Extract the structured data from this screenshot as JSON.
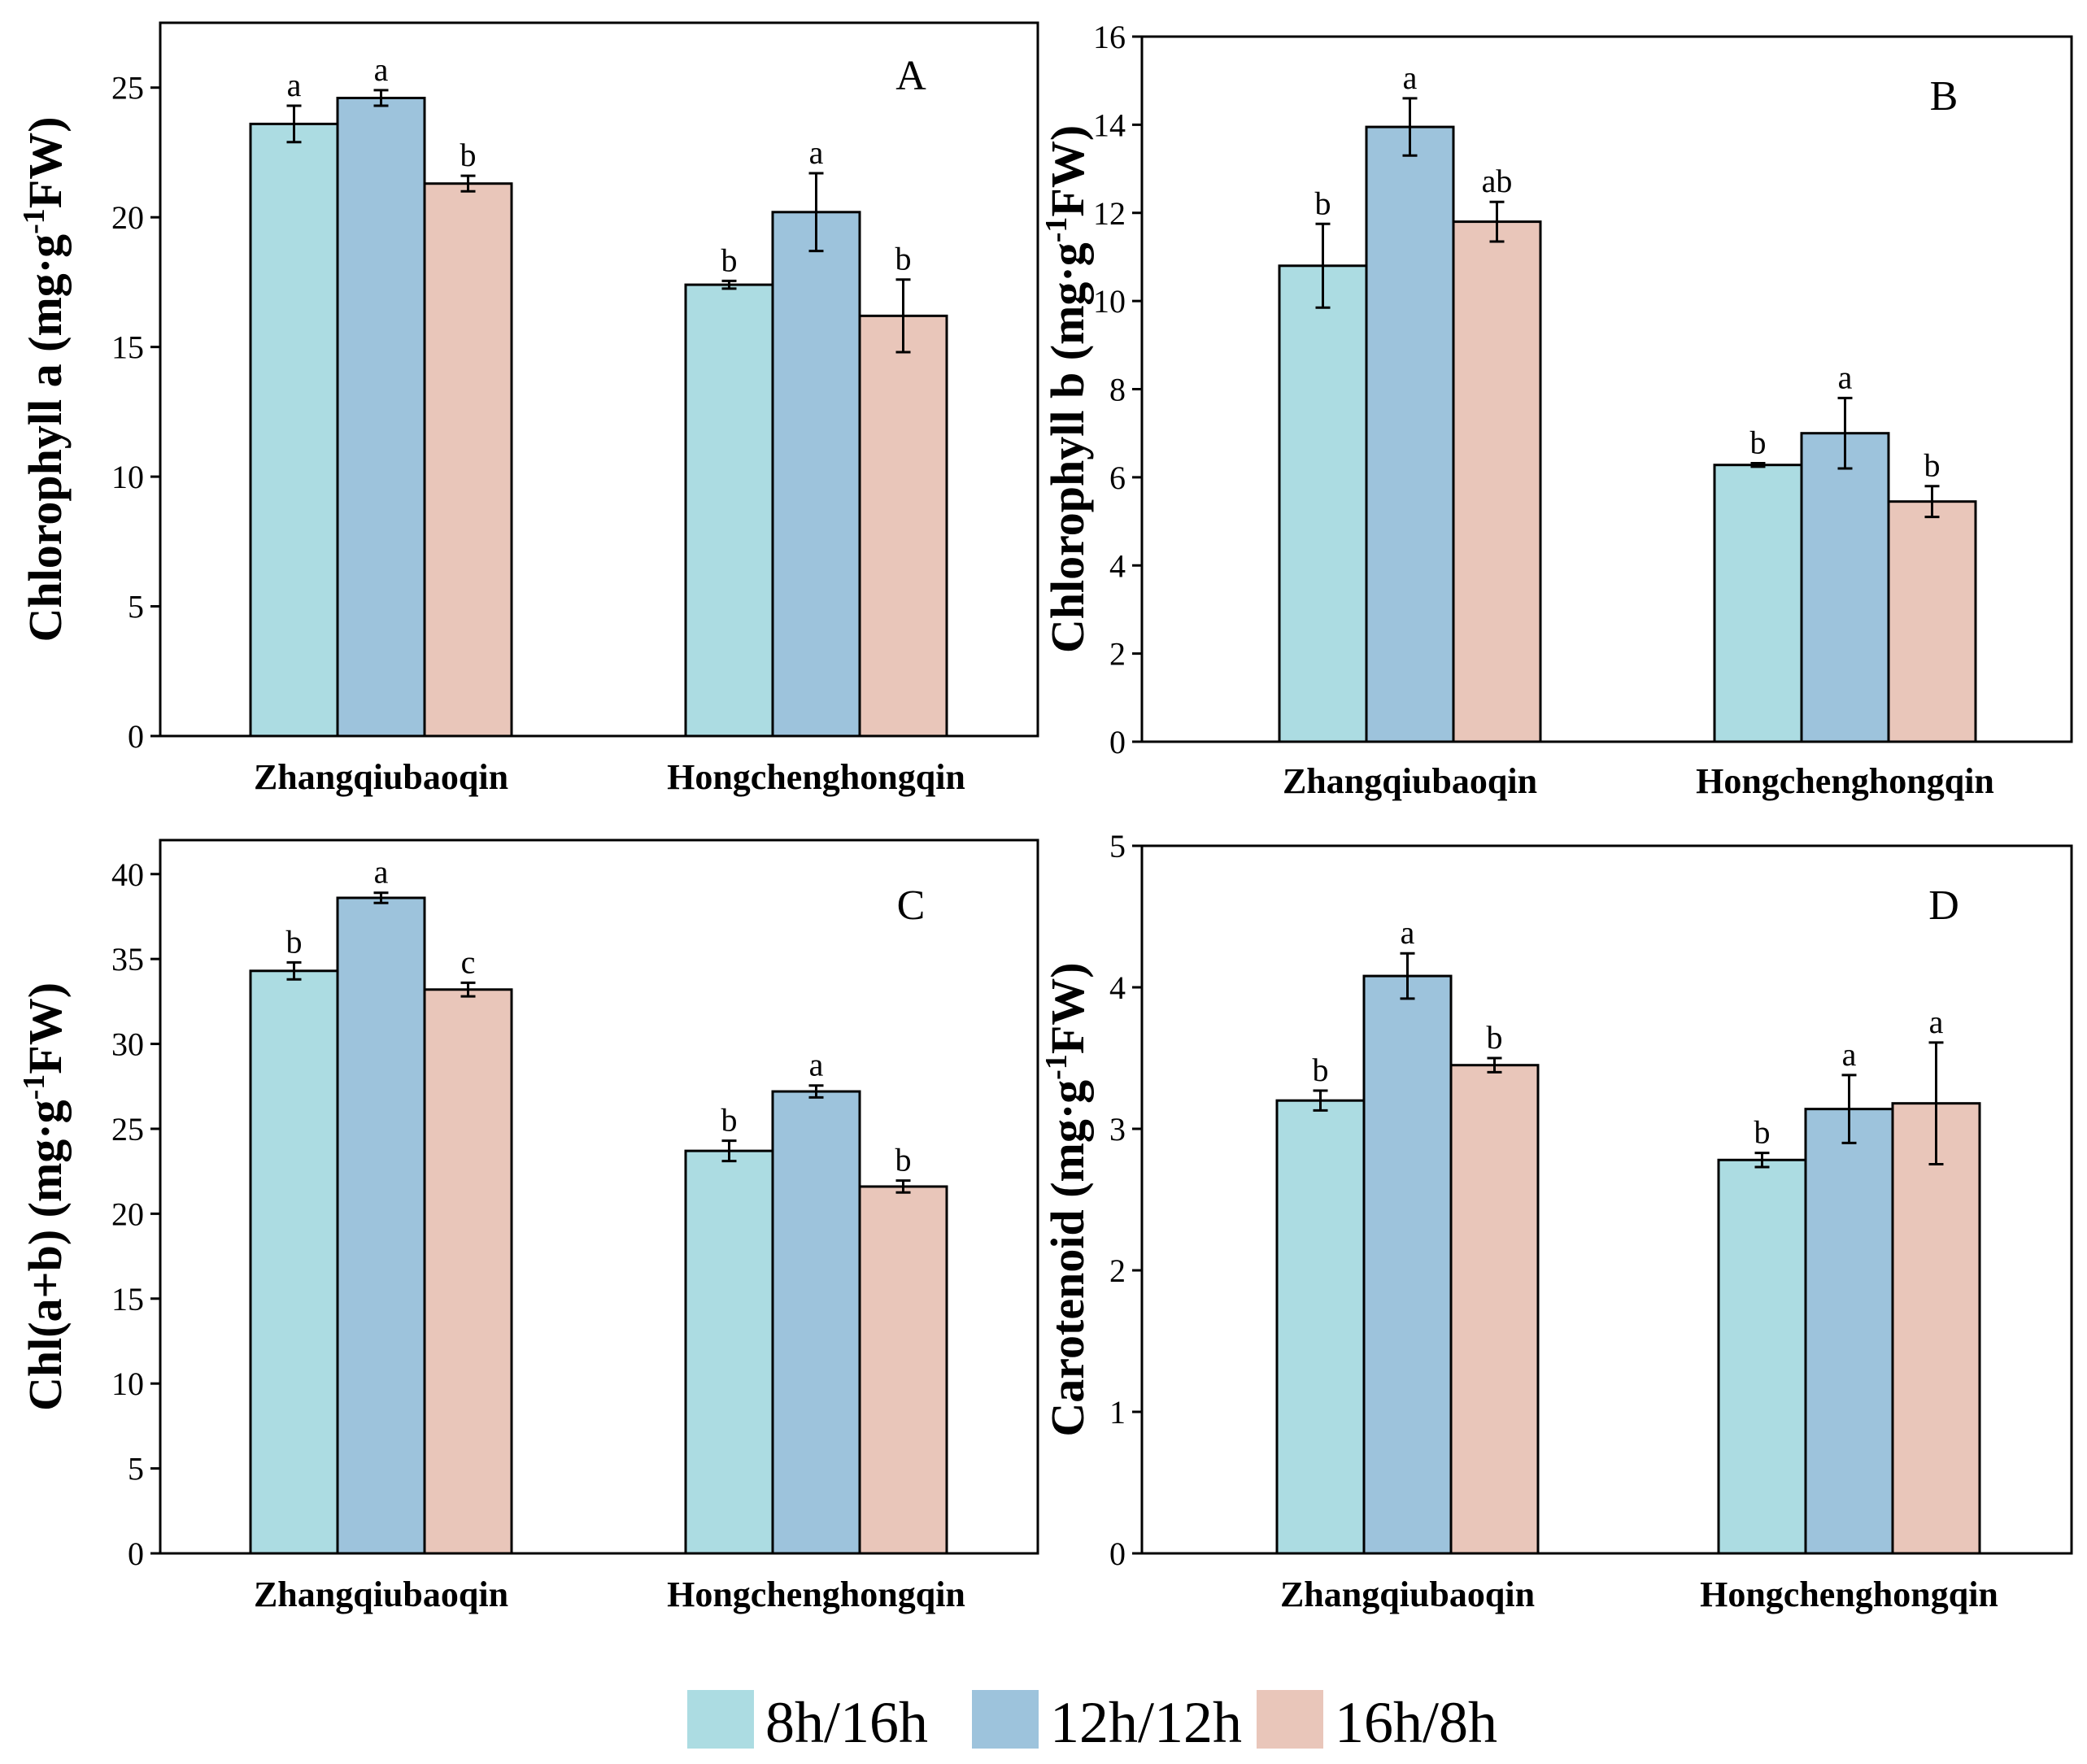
{
  "colors": {
    "s8h": "#acdce2",
    "s12h": "#9dc3dc",
    "s16h": "#e9c6ba"
  },
  "legend": [
    {
      "key": "s8h",
      "label": "8h/16h"
    },
    {
      "key": "s12h",
      "label": "12h/12h"
    },
    {
      "key": "s16h",
      "label": "16h/8h"
    }
  ],
  "chart_data": [
    {
      "type": "bar",
      "panel": "A",
      "ylabel": "Chlorophyll a (mg·g⁻¹FW)",
      "ylabel_parts": {
        "pre": "Chlorophyll a (mg·g",
        "sup": "-1",
        "post": "FW)"
      },
      "ylim": [
        0,
        27.5
      ],
      "yticks": [
        0,
        5,
        10,
        15,
        20,
        25
      ],
      "categories": [
        "Zhangqiubaoqin",
        "Hongchenghongqin"
      ],
      "series": [
        {
          "name": "8h/16h",
          "values": [
            23.6,
            17.4
          ],
          "errors": [
            0.7,
            0.15
          ],
          "labels": [
            "a",
            "b"
          ]
        },
        {
          "name": "12h/12h",
          "values": [
            24.6,
            20.2
          ],
          "errors": [
            0.3,
            1.5
          ],
          "labels": [
            "a",
            "a"
          ]
        },
        {
          "name": "16h/8h",
          "values": [
            21.3,
            16.2
          ],
          "errors": [
            0.3,
            1.4
          ],
          "labels": [
            "b",
            "b"
          ]
        }
      ]
    },
    {
      "type": "bar",
      "panel": "B",
      "ylabel": "Chlorophyll b (mg·g⁻¹FW)",
      "ylabel_parts": {
        "pre": "Chlorophyll b (mg·g",
        "sup": "-1",
        "post": "FW)"
      },
      "ylim": [
        0,
        16
      ],
      "yticks": [
        0,
        2,
        4,
        6,
        8,
        10,
        12,
        14,
        16
      ],
      "categories": [
        "Zhangqiubaoqin",
        "Hongchenghongqin"
      ],
      "series": [
        {
          "name": "8h/16h",
          "values": [
            10.8,
            6.28
          ],
          "errors": [
            0.95,
            0.04
          ],
          "labels": [
            "b",
            "b"
          ]
        },
        {
          "name": "12h/12h",
          "values": [
            13.95,
            7.0
          ],
          "errors": [
            0.65,
            0.8
          ],
          "labels": [
            "a",
            "a"
          ]
        },
        {
          "name": "16h/8h",
          "values": [
            11.8,
            5.45
          ],
          "errors": [
            0.45,
            0.35
          ],
          "labels": [
            "ab",
            "b"
          ]
        }
      ]
    },
    {
      "type": "bar",
      "panel": "C",
      "ylabel": "Chl(a+b) (mg·g⁻¹FW)",
      "ylabel_parts": {
        "pre": "Chl(a+b) (mg·g",
        "sup": "-1",
        "post": "FW)"
      },
      "ylim": [
        0,
        42
      ],
      "yticks": [
        0,
        5,
        10,
        15,
        20,
        25,
        30,
        35,
        40
      ],
      "categories": [
        "Zhangqiubaoqin",
        "Hongchenghongqin"
      ],
      "series": [
        {
          "name": "8h/16h",
          "values": [
            34.3,
            23.7
          ],
          "errors": [
            0.5,
            0.6
          ],
          "labels": [
            "b",
            "b"
          ]
        },
        {
          "name": "12h/12h",
          "values": [
            38.6,
            27.2
          ],
          "errors": [
            0.3,
            0.35
          ],
          "labels": [
            "a",
            "a"
          ]
        },
        {
          "name": "16h/8h",
          "values": [
            33.2,
            21.6
          ],
          "errors": [
            0.4,
            0.35
          ],
          "labels": [
            "c",
            "b"
          ]
        }
      ]
    },
    {
      "type": "bar",
      "panel": "D",
      "ylabel": "Carotenoid (mg·g⁻¹FW)",
      "ylabel_parts": {
        "pre": "Carotenoid (mg·g",
        "sup": "-1",
        "post": "FW)"
      },
      "ylim": [
        0,
        5
      ],
      "yticks": [
        0,
        1,
        2,
        3,
        4,
        5
      ],
      "categories": [
        "Zhangqiubaoqin",
        "Hongchenghongqin"
      ],
      "series": [
        {
          "name": "8h/16h",
          "values": [
            3.2,
            2.78
          ],
          "errors": [
            0.07,
            0.05
          ],
          "labels": [
            "b",
            "b"
          ]
        },
        {
          "name": "12h/12h",
          "values": [
            4.08,
            3.14
          ],
          "errors": [
            0.16,
            0.24
          ],
          "labels": [
            "a",
            "a"
          ]
        },
        {
          "name": "16h/8h",
          "values": [
            3.45,
            3.18
          ],
          "errors": [
            0.05,
            0.43
          ],
          "labels": [
            "b",
            "a"
          ]
        }
      ]
    }
  ]
}
